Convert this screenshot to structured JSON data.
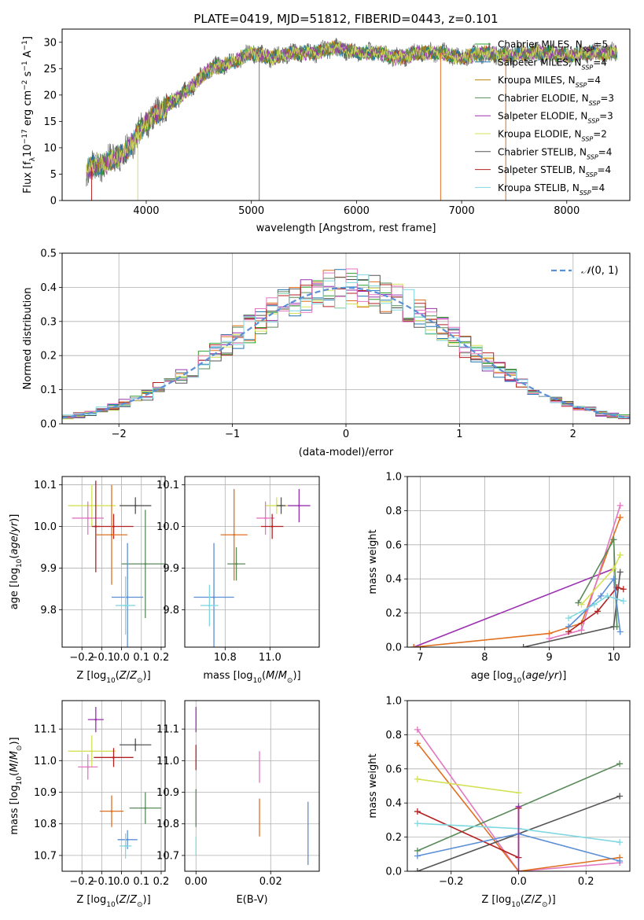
{
  "chart_data": [
    {
      "type": "line",
      "title": "PLATE=0419, MJD=51812, FIBERID=0443, z=0.101",
      "xlabel": "wavelength [Angstrom, rest frame]",
      "ylabel": "Flux [f_λ10^-17 erg cm^-2 s^-1 A^-1]",
      "xlim": [
        3200,
        8600
      ],
      "ylim": [
        0,
        32.5
      ],
      "xticks": [
        4000,
        5000,
        6000,
        7000,
        8000
      ],
      "yticks": [
        0,
        5,
        10,
        15,
        20,
        25,
        30
      ],
      "grid": false,
      "legend_position": "right",
      "x_range_data": [
        3430,
        8480
      ],
      "series": [
        {
          "name": "Chabrier MILES, N_SSP=5",
          "color": "#2ca02c"
        },
        {
          "name": "Salpeter MILES, N_SSP=4",
          "color": "#1f77b4"
        },
        {
          "name": "Kroupa MILES, N_SSP=4",
          "color": "#b8860b"
        },
        {
          "name": "Chabrier ELODIE, N_SSP=3",
          "color": "#5a8a5a"
        },
        {
          "name": "Salpeter ELODIE, N_SSP=3",
          "color": "#9b30b0"
        },
        {
          "name": "Kroupa ELODIE, N_SSP=2",
          "color": "#d4e157"
        },
        {
          "name": "Chabrier STELIB, N_SSP=4",
          "color": "#555555"
        },
        {
          "name": "Salpeter STELIB, N_SSP=4",
          "color": "#b22222"
        },
        {
          "name": "Kroupa STELIB, N_SSP=4",
          "color": "#80d8e0"
        }
      ],
      "continuum": {
        "x": [
          3430,
          3600,
          3800,
          4000,
          4200,
          4400,
          4600,
          4800,
          5000,
          5200,
          5400,
          5600,
          5800,
          6000,
          6200,
          6400,
          6600,
          6800,
          7000,
          7200,
          7400,
          7600,
          7800,
          8000,
          8200,
          8480
        ],
        "y": [
          6,
          7,
          9,
          15,
          18,
          21,
          25,
          26,
          28,
          27,
          28,
          28,
          29,
          28,
          28,
          27,
          28,
          28,
          27,
          28,
          27.5,
          28,
          28,
          27.5,
          28,
          28
        ]
      }
    },
    {
      "type": "line",
      "xlabel": "(data-model)/error",
      "ylabel": "Normed distribution",
      "xlim": [
        -2.5,
        2.5
      ],
      "ylim": [
        0,
        0.5
      ],
      "xticks": [
        -2,
        -1,
        0,
        1,
        2
      ],
      "yticks": [
        0.0,
        0.1,
        0.2,
        0.3,
        0.4,
        0.5
      ],
      "grid": true,
      "legend": [
        {
          "name": "N(0,1)",
          "color": "#5b8fd6",
          "style": "dashed"
        }
      ],
      "legend_position": "top-right",
      "histogram_series_colors": [
        "#2ca02c",
        "#1f77b4",
        "#e07020",
        "#5a8a5a",
        "#9b30b0",
        "#d4e157",
        "#555555",
        "#b22222",
        "#e377c2",
        "#80d8e0"
      ]
    },
    {
      "type": "scatter",
      "xlabel": "Z [log10(Z/Z☉)]",
      "ylabel": "age  [log10(age/yr)]",
      "xlim": [
        -0.3,
        0.22
      ],
      "ylim": [
        9.71,
        10.12
      ],
      "xticks": [
        -0.2,
        -0.1,
        0.0,
        0.1,
        0.2
      ],
      "yticks": [
        9.8,
        9.9,
        10.0,
        10.1
      ],
      "grid": true,
      "points": [
        {
          "x": -0.15,
          "y": 10.05,
          "xerr": 0.12,
          "yerr": 0.05,
          "color": "#d4e157"
        },
        {
          "x": 0.07,
          "y": 10.05,
          "xerr": 0.08,
          "yerr": 0.02,
          "color": "#555555"
        },
        {
          "x": -0.17,
          "y": 10.02,
          "xerr": 0.08,
          "yerr": 0.04,
          "color": "#e377c2"
        },
        {
          "x": -0.04,
          "y": 10.0,
          "xerr": 0.1,
          "yerr": 0.03,
          "color": "#b22222"
        },
        {
          "x": -0.13,
          "y": 10.0,
          "xerr": 0.02,
          "yerr": 0.11,
          "color": "#b22222"
        },
        {
          "x": -0.05,
          "y": 9.98,
          "xerr": 0.08,
          "yerr": 0.12,
          "color": "#e07020"
        },
        {
          "x": 0.12,
          "y": 9.91,
          "xerr": 0.12,
          "yerr": 0.13,
          "color": "#5a8a5a"
        },
        {
          "x": 0.03,
          "y": 9.83,
          "xerr": 0.08,
          "yerr": 0.13,
          "color": "#5b8fd6"
        },
        {
          "x": 0.02,
          "y": 9.81,
          "xerr": 0.05,
          "yerr": 0.07,
          "color": "#80d8e0"
        }
      ]
    },
    {
      "type": "scatter",
      "xlabel": "mass [log10(M/M☉)]",
      "ylabel": "",
      "xlim": [
        10.62,
        11.22
      ],
      "ylim": [
        9.71,
        10.12
      ],
      "xticks": [
        10.8,
        11.0
      ],
      "yticks": [
        9.8,
        9.9,
        10.0,
        10.1
      ],
      "grid": true,
      "points": [
        {
          "x": 11.03,
          "y": 10.05,
          "xerr": 0.05,
          "yerr": 0.02,
          "color": "#d4e157"
        },
        {
          "x": 11.05,
          "y": 10.05,
          "xerr": 0.02,
          "yerr": 0.02,
          "color": "#555555"
        },
        {
          "x": 11.13,
          "y": 10.05,
          "xerr": 0.05,
          "yerr": 0.04,
          "color": "#9b30b0"
        },
        {
          "x": 10.98,
          "y": 10.02,
          "xerr": 0.04,
          "yerr": 0.04,
          "color": "#e377c2"
        },
        {
          "x": 11.01,
          "y": 10.0,
          "xerr": 0.05,
          "yerr": 0.03,
          "color": "#b22222"
        },
        {
          "x": 10.84,
          "y": 9.98,
          "xerr": 0.06,
          "yerr": 0.11,
          "color": "#e07020"
        },
        {
          "x": 10.85,
          "y": 9.91,
          "xerr": 0.04,
          "yerr": 0.04,
          "color": "#5a8a5a"
        },
        {
          "x": 10.75,
          "y": 9.83,
          "xerr": 0.09,
          "yerr": 0.13,
          "color": "#5b8fd6"
        },
        {
          "x": 10.73,
          "y": 9.81,
          "xerr": 0.04,
          "yerr": 0.05,
          "color": "#80d8e0"
        }
      ]
    },
    {
      "type": "line",
      "xlabel": "age  [log10(age/yr)]",
      "ylabel": "mass weight",
      "xlim": [
        6.8,
        10.25
      ],
      "ylim": [
        0.0,
        1.0
      ],
      "xticks": [
        7,
        8,
        9,
        10
      ],
      "yticks": [
        0.0,
        0.2,
        0.4,
        0.6,
        0.8,
        1.0
      ],
      "grid": true,
      "series": [
        {
          "color": "#9b30b0",
          "x": [
            6.9,
            10.0
          ],
          "y": [
            0.0,
            0.46
          ]
        },
        {
          "color": "#e07020",
          "x": [
            6.9,
            9.0,
            9.5,
            10.1
          ],
          "y": [
            0.0,
            0.08,
            0.14,
            0.76
          ]
        },
        {
          "color": "#e377c2",
          "x": [
            9.0,
            9.5,
            10.1
          ],
          "y": [
            0.05,
            0.1,
            0.83
          ]
        },
        {
          "color": "#555555",
          "x": [
            8.6,
            10.0,
            10.1
          ],
          "y": [
            0.0,
            0.12,
            0.44
          ]
        },
        {
          "color": "#5a8a5a",
          "x": [
            9.45,
            10.0,
            10.05
          ],
          "y": [
            0.26,
            0.63,
            0.12
          ]
        },
        {
          "color": "#b22222",
          "x": [
            9.3,
            9.75,
            10.05,
            10.15
          ],
          "y": [
            0.09,
            0.21,
            0.35,
            0.34
          ]
        },
        {
          "color": "#5b8fd6",
          "x": [
            9.3,
            9.8,
            10.0,
            10.1
          ],
          "y": [
            0.12,
            0.3,
            0.4,
            0.09
          ]
        },
        {
          "color": "#80d8e0",
          "x": [
            9.3,
            9.7,
            9.9,
            10.15
          ],
          "y": [
            0.17,
            0.25,
            0.3,
            0.27
          ]
        },
        {
          "color": "#d4e157",
          "x": [
            9.5,
            10.0,
            10.1
          ],
          "y": [
            0.25,
            0.46,
            0.54
          ]
        }
      ]
    },
    {
      "type": "scatter",
      "xlabel": "Z [log10(Z/Z☉)]",
      "ylabel": "mass [log10(M/M☉)]",
      "xlim": [
        -0.3,
        0.22
      ],
      "ylim": [
        10.65,
        11.19
      ],
      "xticks": [
        -0.2,
        -0.1,
        0.0,
        0.1,
        0.2
      ],
      "yticks": [
        10.7,
        10.8,
        10.9,
        11.0,
        11.1
      ],
      "grid": true,
      "points": [
        {
          "x": -0.13,
          "y": 11.13,
          "xerr": 0.04,
          "yerr": 0.04,
          "color": "#9b30b0"
        },
        {
          "x": 0.07,
          "y": 11.05,
          "xerr": 0.08,
          "yerr": 0.02,
          "color": "#555555"
        },
        {
          "x": -0.15,
          "y": 11.03,
          "xerr": 0.12,
          "yerr": 0.05,
          "color": "#d4e157"
        },
        {
          "x": -0.04,
          "y": 11.01,
          "xerr": 0.1,
          "yerr": 0.03,
          "color": "#b22222"
        },
        {
          "x": -0.17,
          "y": 10.98,
          "xerr": 0.05,
          "yerr": 0.04,
          "color": "#e377c2"
        },
        {
          "x": 0.12,
          "y": 10.85,
          "xerr": 0.08,
          "yerr": 0.05,
          "color": "#5a8a5a"
        },
        {
          "x": -0.05,
          "y": 10.84,
          "xerr": 0.06,
          "yerr": 0.05,
          "color": "#e07020"
        },
        {
          "x": 0.03,
          "y": 10.75,
          "xerr": 0.05,
          "yerr": 0.03,
          "color": "#5b8fd6"
        },
        {
          "x": 0.02,
          "y": 10.73,
          "xerr": 0.03,
          "yerr": 0.04,
          "color": "#80d8e0"
        }
      ]
    },
    {
      "type": "scatter",
      "xlabel": "E(B-V)",
      "ylabel": "",
      "xlim": [
        -0.003,
        0.033
      ],
      "ylim": [
        10.65,
        11.19
      ],
      "xticks": [
        0.0,
        0.02
      ],
      "yticks": [
        10.7,
        10.8,
        10.9,
        11.0,
        11.1
      ],
      "grid": true,
      "points": [
        {
          "x": 0.0,
          "y": 11.13,
          "yerr": 0.04,
          "color": "#9b30b0"
        },
        {
          "x": 0.0,
          "y": 11.01,
          "yerr": 0.04,
          "color": "#b22222"
        },
        {
          "x": 0.0,
          "y": 10.85,
          "yerr": 0.06,
          "color": "#5a8a5a"
        },
        {
          "x": 0.0,
          "y": 10.73,
          "yerr": 0.03,
          "color": "#80d8e0"
        },
        {
          "x": 0.017,
          "y": 10.98,
          "yerr": 0.05,
          "color": "#e377c2"
        },
        {
          "x": 0.017,
          "y": 10.82,
          "yerr": 0.06,
          "color": "#e07020"
        },
        {
          "x": 0.03,
          "y": 10.77,
          "yerr": 0.1,
          "color": "#5b8fd6"
        }
      ]
    },
    {
      "type": "line",
      "xlabel": "Z [log10(Z/Z☉)]",
      "ylabel": "mass weight",
      "xlim": [
        -0.33,
        0.33
      ],
      "ylim": [
        0.0,
        1.0
      ],
      "xticks": [
        -0.2,
        0.0,
        0.2
      ],
      "yticks": [
        0.0,
        0.2,
        0.4,
        0.6,
        0.8,
        1.0
      ],
      "grid": true,
      "series": [
        {
          "color": "#e377c2",
          "x": [
            -0.3,
            0.0,
            0.3
          ],
          "y": [
            0.83,
            0.0,
            0.05
          ]
        },
        {
          "color": "#e07020",
          "x": [
            -0.3,
            0.0,
            0.3
          ],
          "y": [
            0.75,
            0.0,
            0.08
          ]
        },
        {
          "color": "#d4e157",
          "x": [
            -0.3,
            0.0
          ],
          "y": [
            0.54,
            0.46
          ]
        },
        {
          "color": "#555555",
          "x": [
            -0.3,
            0.3
          ],
          "y": [
            0.0,
            0.44
          ]
        },
        {
          "color": "#5a8a5a",
          "x": [
            -0.3,
            0.3
          ],
          "y": [
            0.12,
            0.63
          ]
        },
        {
          "color": "#b22222",
          "x": [
            -0.3,
            0.0,
            0.0
          ],
          "y": [
            0.35,
            0.08,
            0.37
          ]
        },
        {
          "color": "#5b8fd6",
          "x": [
            -0.3,
            0.0,
            0.3
          ],
          "y": [
            0.09,
            0.22,
            0.06
          ]
        },
        {
          "color": "#80d8e0",
          "x": [
            -0.3,
            0.0,
            0.3
          ],
          "y": [
            0.28,
            0.25,
            0.17
          ]
        },
        {
          "color": "#9b30b0",
          "x": [
            0.0,
            0.0
          ],
          "y": [
            0.0,
            0.38
          ]
        }
      ]
    }
  ]
}
